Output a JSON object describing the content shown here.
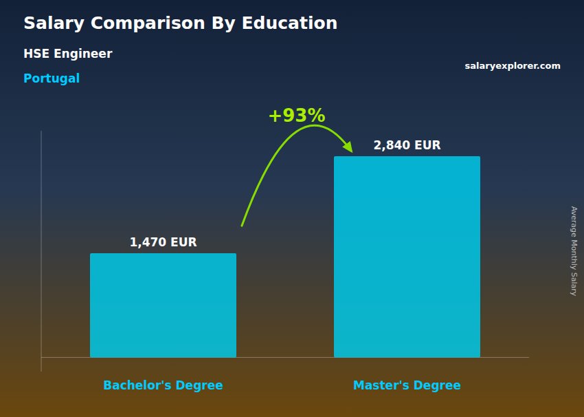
{
  "chart_data": {
    "type": "bar",
    "title": "Salary Comparison By Education",
    "subtitle": "HSE Engineer",
    "annotations": [
      "Portugal",
      "salaryexplorer.com",
      "+93%"
    ],
    "y_label": "Average Monthly Salary",
    "categories": [
      "Bachelor's Degree",
      "Master's Degree"
    ],
    "values": [
      1470,
      2840
    ],
    "value_labels": [
      "1,470 EUR",
      "2,840 EUR"
    ],
    "data_labels": true,
    "color": "#00c8e8",
    "ylim": [
      -200,
      3200
    ],
    "grid": false,
    "tick_labels": "x"
  }
}
